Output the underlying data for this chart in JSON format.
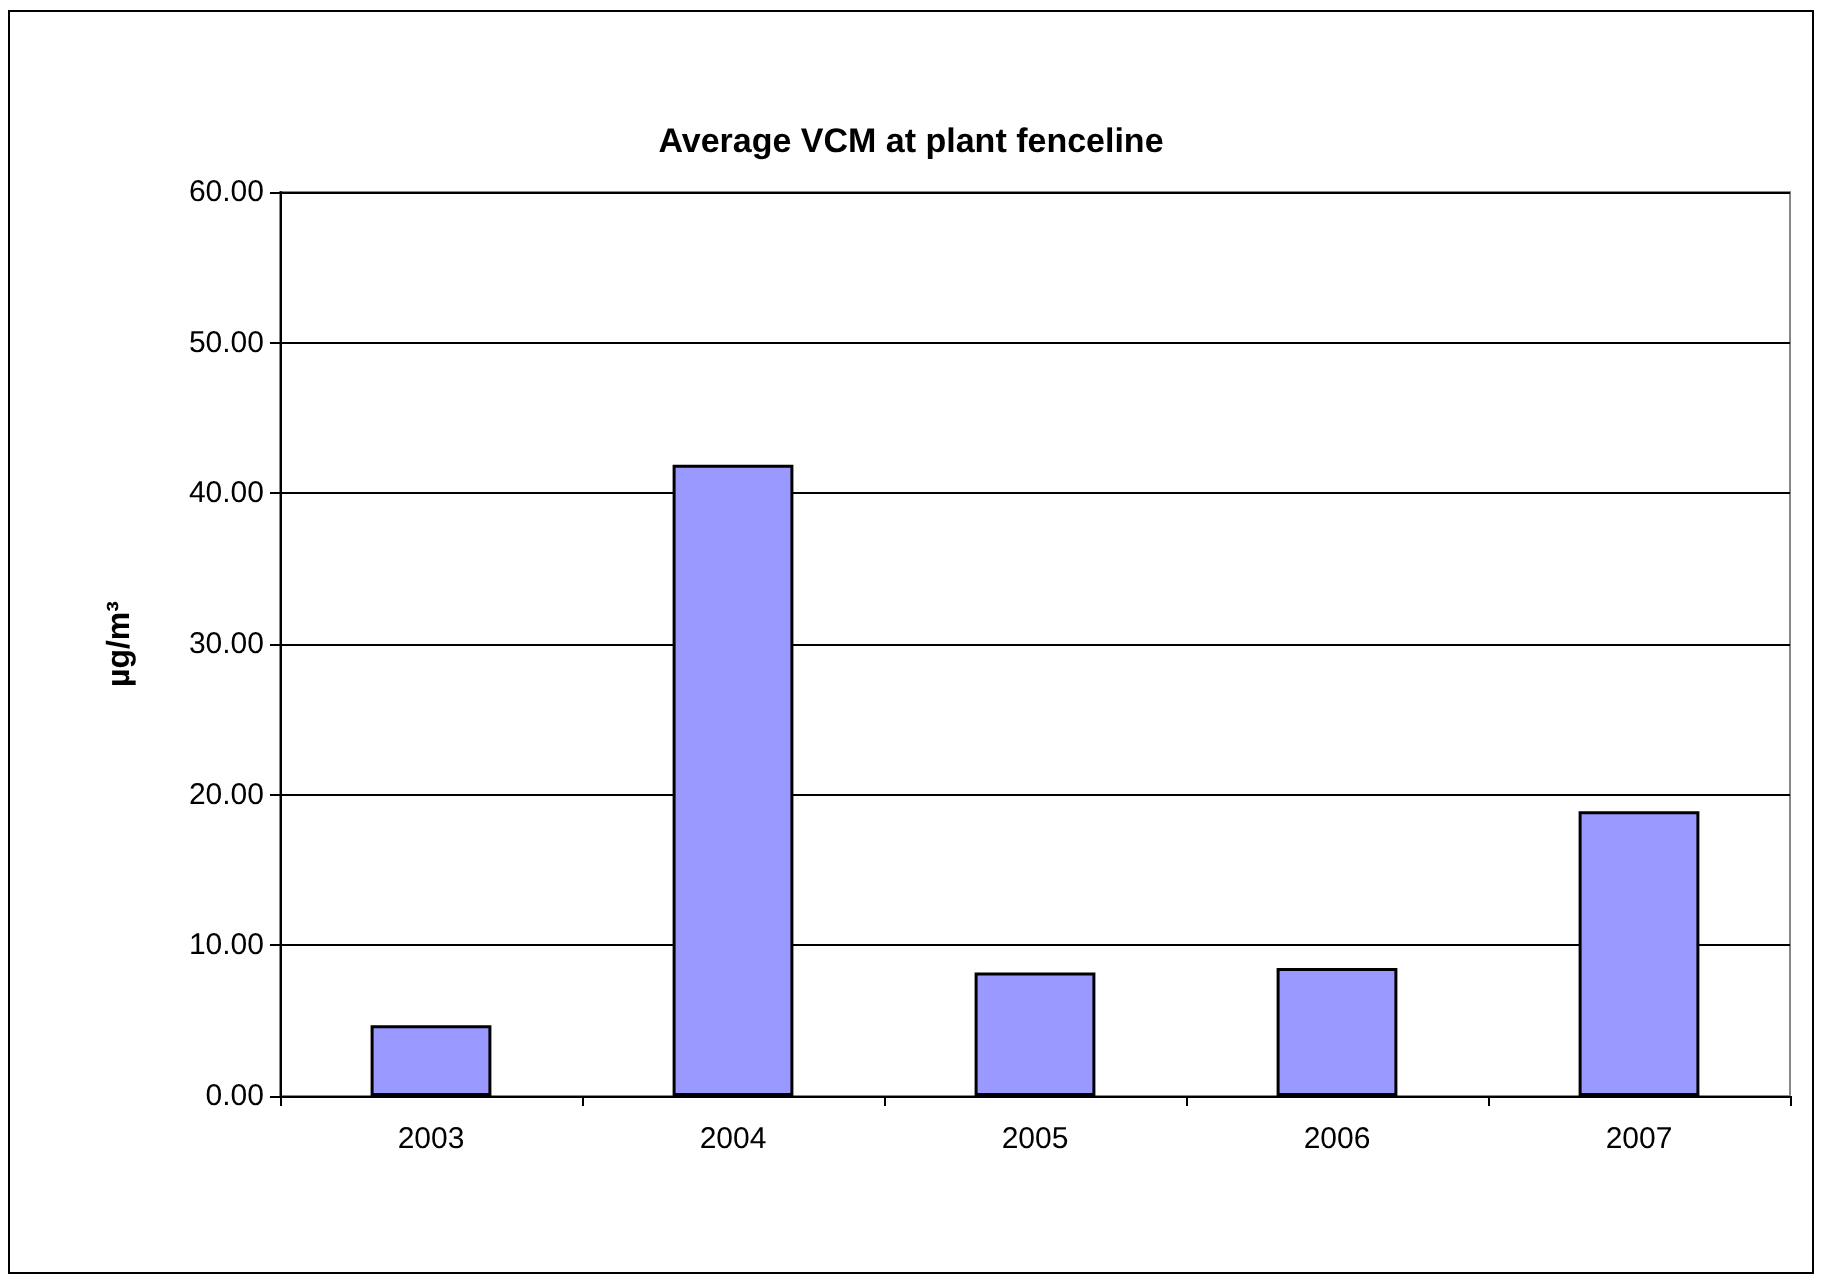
{
  "chart_data": {
    "type": "bar",
    "title": "Average VCM at plant fenceline",
    "ylabel": "µg/m³",
    "categories": [
      "2003",
      "2004",
      "2005",
      "2006",
      "2007"
    ],
    "values": [
      4.7,
      41.9,
      8.2,
      8.5,
      18.9
    ],
    "color": "#9999ff",
    "ylim": [
      0,
      60
    ],
    "yticks": [
      {
        "value": 0,
        "label": "0.00"
      },
      {
        "value": 10,
        "label": "10.00"
      },
      {
        "value": 20,
        "label": "20.00"
      },
      {
        "value": 30,
        "label": "30.00"
      },
      {
        "value": 40,
        "label": "40.00"
      },
      {
        "value": 50,
        "label": "50.00"
      },
      {
        "value": 60,
        "label": "60.00"
      }
    ],
    "grid": "y"
  }
}
